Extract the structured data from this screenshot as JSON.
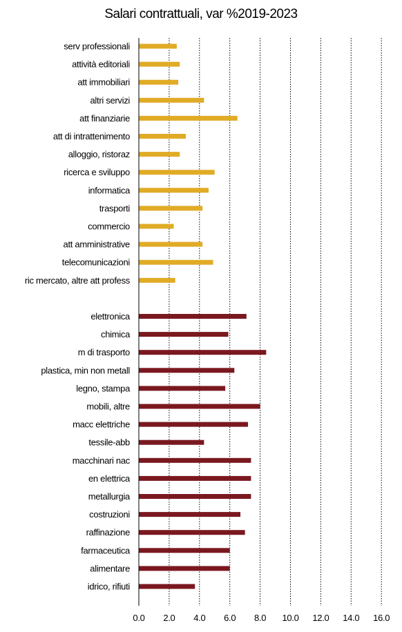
{
  "chart_data": {
    "type": "bar",
    "orientation": "horizontal",
    "title": "Salari contrattuali, var %2019-2023",
    "xlim": [
      0,
      16
    ],
    "x_ticks": [
      "0.0",
      "2.0",
      "4.0",
      "6.0",
      "8.0",
      "10.0",
      "12.0",
      "14.0",
      "16.0"
    ],
    "grid": "vertical dotted",
    "colors": {
      "services": "#E0AB26",
      "industry": "#7A1820"
    },
    "groups": [
      {
        "color_key": "services",
        "categories": [
          "serv professionali",
          "attività editoriali",
          "att immobiliari",
          "altri servizi",
          "att finanziarie",
          "att di intrattenimento",
          "alloggio, ristoraz",
          "ricerca e sviluppo",
          "informatica",
          "trasporti",
          "commercio",
          "att amministrative",
          "telecomunicazioni",
          "ric mercato, altre att profess"
        ],
        "values": [
          2.5,
          2.7,
          2.6,
          4.3,
          6.5,
          3.1,
          2.7,
          5.0,
          4.6,
          4.2,
          2.3,
          4.2,
          4.9,
          2.4
        ]
      },
      {
        "color_key": "industry",
        "categories": [
          "elettronica",
          "chimica",
          "m di trasporto",
          "plastica, min non metall",
          "legno, stampa",
          "mobili, altre",
          "macc elettriche",
          "tessile-abb",
          "macchinari nac",
          "en elettrica",
          "metallurgia",
          "costruzioni",
          "raffinazione",
          "farmaceutica",
          "alimentare",
          "idrico, rifiuti"
        ],
        "values": [
          7.1,
          5.9,
          8.4,
          6.3,
          5.7,
          8.0,
          7.2,
          4.3,
          7.4,
          7.4,
          7.4,
          6.7,
          7.0,
          6.0,
          6.0,
          3.7
        ]
      }
    ]
  }
}
